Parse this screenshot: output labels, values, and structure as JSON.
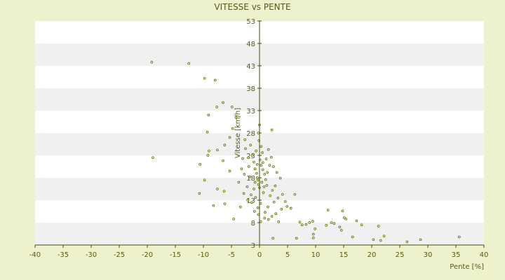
{
  "chart_data": {
    "type": "scatter",
    "title": "VITESSE vs PENTE",
    "xlabel": "Pente [%]",
    "ylabel": "Vitesse [km/h]",
    "xlim": [
      -40,
      40
    ],
    "ylim": [
      3,
      53
    ],
    "x_ticks": [
      -40,
      -35,
      -30,
      -25,
      -20,
      -15,
      -10,
      -5,
      0,
      5,
      10,
      15,
      20,
      25,
      30,
      35,
      40
    ],
    "y_ticks": [
      3,
      8,
      13,
      18,
      23,
      28,
      33,
      38,
      43,
      48,
      53
    ],
    "grid": "horizontal alternating bands",
    "legend": "none",
    "colors": {
      "background": "#edf2cc",
      "band_light": "#ffffff",
      "band_dark": "#f0f0f0",
      "axis": "#4a4a0a",
      "marker": "#6b7a10"
    },
    "points": [
      [
        -19.2,
        43.8
      ],
      [
        -12.6,
        43.5
      ],
      [
        -9.8,
        40.2
      ],
      [
        -7.9,
        39.8
      ],
      [
        -6.5,
        34.8
      ],
      [
        -7.6,
        33.8
      ],
      [
        -9.1,
        32.0
      ],
      [
        -9.3,
        28.2
      ],
      [
        -4.9,
        33.8
      ],
      [
        -4.2,
        31.5
      ],
      [
        -4.8,
        29.0
      ],
      [
        -5.3,
        27.0
      ],
      [
        -6.2,
        25.3
      ],
      [
        -7.5,
        24.2
      ],
      [
        -9.0,
        24.0
      ],
      [
        -9.2,
        23.0
      ],
      [
        -19.0,
        22.5
      ],
      [
        -10.6,
        21.0
      ],
      [
        -9.8,
        17.5
      ],
      [
        -10.7,
        14.5
      ],
      [
        -6.5,
        21.8
      ],
      [
        -5.3,
        19.5
      ],
      [
        -6.3,
        15.0
      ],
      [
        -7.5,
        15.5
      ],
      [
        -8.2,
        11.8
      ],
      [
        -6.2,
        12.2
      ],
      [
        -4.6,
        8.8
      ],
      [
        -3.4,
        11.5
      ],
      [
        -2.6,
        26.5
      ],
      [
        -2.5,
        24.5
      ],
      [
        -2.0,
        22.5
      ],
      [
        -1.9,
        20.5
      ],
      [
        -1.7,
        18.2
      ],
      [
        -2.2,
        16.0
      ],
      [
        -2.8,
        14.5
      ],
      [
        -2.1,
        13.0
      ],
      [
        -1.4,
        12.5
      ],
      [
        -0.9,
        10.5
      ],
      [
        -0.3,
        11.3
      ],
      [
        0.2,
        12.3
      ],
      [
        -1.3,
        23.0
      ],
      [
        -1.0,
        21.5
      ],
      [
        -0.8,
        20.0
      ],
      [
        -0.5,
        19.0
      ],
      [
        -0.3,
        17.5
      ],
      [
        -0.2,
        16.5
      ],
      [
        0.1,
        22.0
      ],
      [
        0.3,
        20.8
      ],
      [
        0.6,
        19.8
      ],
      [
        0.9,
        18.8
      ],
      [
        1.1,
        17.6
      ],
      [
        1.3,
        16.3
      ],
      [
        0.5,
        23.6
      ],
      [
        0.3,
        25.0
      ],
      [
        -0.1,
        26.3
      ],
      [
        -0.2,
        28.0
      ],
      [
        0.0,
        29.8
      ],
      [
        2.2,
        28.7
      ],
      [
        1.6,
        24.3
      ],
      [
        2.1,
        22.6
      ],
      [
        2.5,
        20.5
      ],
      [
        3.1,
        19.2
      ],
      [
        3.7,
        17.9
      ],
      [
        2.8,
        16.2
      ],
      [
        2.3,
        15.2
      ],
      [
        1.9,
        14.0
      ],
      [
        2.6,
        12.6
      ],
      [
        3.3,
        13.5
      ],
      [
        4.1,
        14.3
      ],
      [
        4.6,
        12.7
      ],
      [
        4.9,
        11.6
      ],
      [
        3.9,
        11.0
      ],
      [
        2.9,
        10.0
      ],
      [
        2.2,
        9.4
      ],
      [
        1.6,
        8.7
      ],
      [
        0.9,
        9.0
      ],
      [
        0.2,
        8.2
      ],
      [
        -0.2,
        9.8
      ],
      [
        2.4,
        4.5
      ],
      [
        3.4,
        8.2
      ],
      [
        5.6,
        11.2
      ],
      [
        6.3,
        14.3
      ],
      [
        6.6,
        4.5
      ],
      [
        7.2,
        8.1
      ],
      [
        7.6,
        7.5
      ],
      [
        8.3,
        7.6
      ],
      [
        8.9,
        8.0
      ],
      [
        9.5,
        8.3
      ],
      [
        9.9,
        6.6
      ],
      [
        9.6,
        5.4
      ],
      [
        9.6,
        4.6
      ],
      [
        12.2,
        10.8
      ],
      [
        11.9,
        7.4
      ],
      [
        12.8,
        8.0
      ],
      [
        13.3,
        7.8
      ],
      [
        14.3,
        7.0
      ],
      [
        14.8,
        10.6
      ],
      [
        15.1,
        9.1
      ],
      [
        15.4,
        8.8
      ],
      [
        14.6,
        6.3
      ],
      [
        16.6,
        4.8
      ],
      [
        17.3,
        8.4
      ],
      [
        18.2,
        7.5
      ],
      [
        20.3,
        4.2
      ],
      [
        21.2,
        7.2
      ],
      [
        21.6,
        4.0
      ],
      [
        22.2,
        5.0
      ],
      [
        26.3,
        3.7
      ],
      [
        28.7,
        4.2
      ],
      [
        35.6,
        4.8
      ],
      [
        -1.0,
        15.5
      ],
      [
        -1.5,
        14.2
      ],
      [
        -0.7,
        13.6
      ],
      [
        0.7,
        14.7
      ],
      [
        1.5,
        11.5
      ],
      [
        1.0,
        10.3
      ],
      [
        -2.7,
        18.8
      ],
      [
        -3.2,
        20.0
      ],
      [
        -3.7,
        17.0
      ],
      [
        -3.0,
        22.3
      ],
      [
        -1.6,
        25.3
      ],
      [
        -0.6,
        24.0
      ],
      [
        1.2,
        22.2
      ],
      [
        1.8,
        20.8
      ],
      [
        -0.4,
        18.0
      ],
      [
        0.4,
        17.0
      ],
      [
        0.8,
        16.0
      ],
      [
        -0.8,
        17.0
      ],
      [
        0.0,
        15.8
      ],
      [
        0.6,
        21.4
      ],
      [
        -0.4,
        21.0
      ],
      [
        1.4,
        19.2
      ]
    ]
  }
}
